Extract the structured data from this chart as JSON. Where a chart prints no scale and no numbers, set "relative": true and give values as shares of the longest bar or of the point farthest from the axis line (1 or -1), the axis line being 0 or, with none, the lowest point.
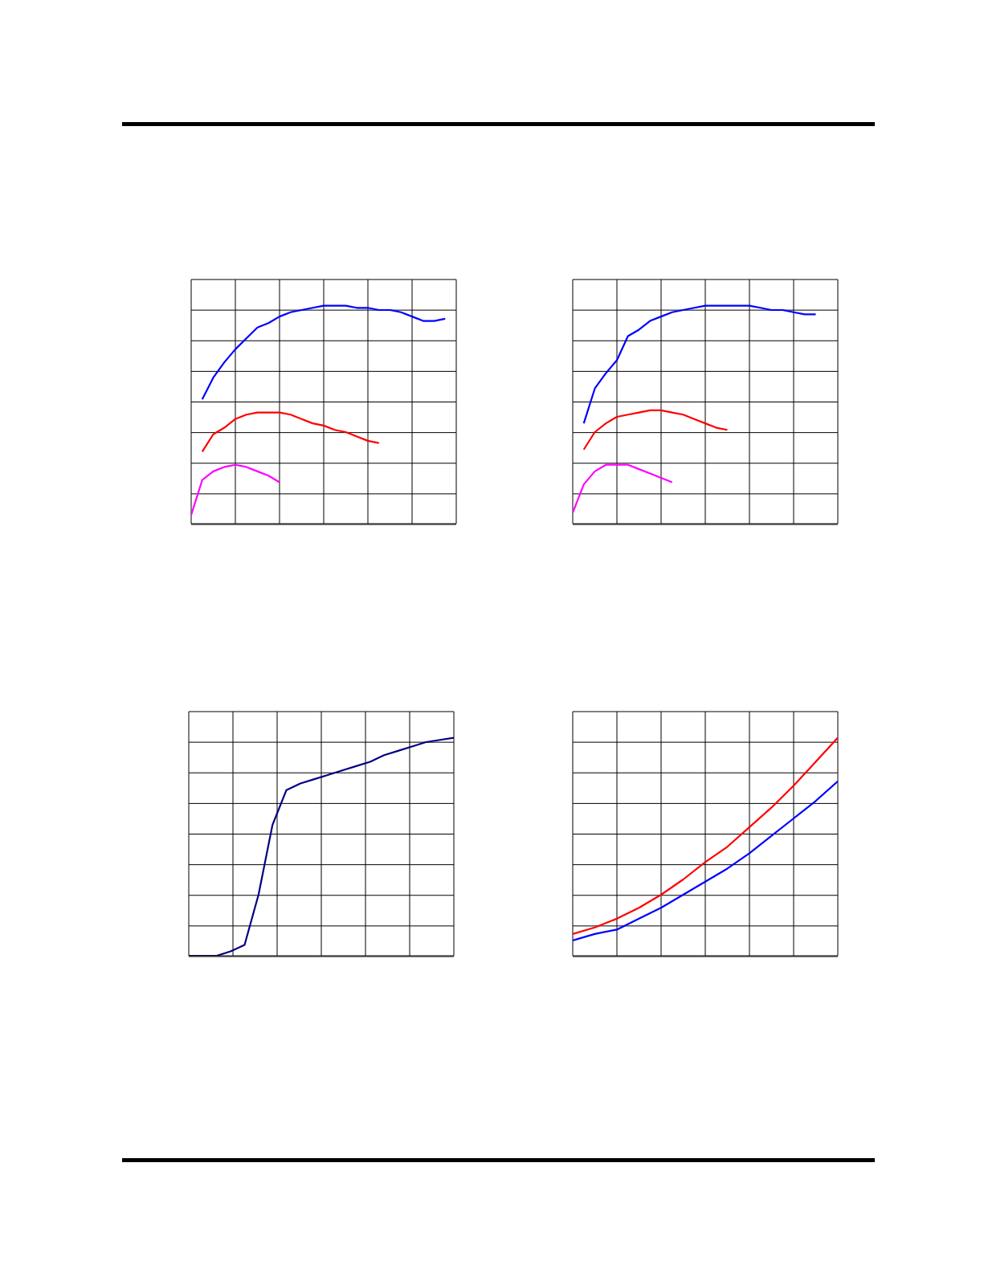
{
  "chart_data": [
    {
      "type": "line",
      "relative": true,
      "grid": true,
      "categories": [
        null,
        null,
        null,
        null,
        null,
        null,
        null,
        null,
        null,
        null,
        null,
        null,
        null,
        null,
        null,
        null,
        null,
        null,
        null,
        null,
        null,
        null,
        null,
        null,
        null
      ],
      "series": [
        {
          "color": "#0000ff",
          "values": [
            null,
            0.57,
            0.67,
            0.74,
            0.8,
            0.85,
            0.9,
            0.92,
            0.95,
            0.97,
            0.98,
            0.99,
            1,
            1,
            1,
            0.99,
            0.99,
            0.98,
            0.98,
            0.97,
            0.95,
            0.93,
            0.93,
            0.94,
            null
          ]
        },
        {
          "color": "#ff0000",
          "values": [
            null,
            0.33,
            0.41,
            0.44,
            0.48,
            0.5,
            0.51,
            0.51,
            0.51,
            0.5,
            0.48,
            0.46,
            0.45,
            0.43,
            0.42,
            0.4,
            0.38,
            0.37,
            null,
            null,
            null,
            null,
            null,
            null,
            null
          ]
        },
        {
          "color": "#ff00ff",
          "values": [
            0.04,
            0.2,
            0.24,
            0.26,
            0.27,
            0.26,
            0.24,
            0.22,
            0.19,
            null,
            null,
            null,
            null,
            null,
            null,
            null,
            null,
            null,
            null,
            null,
            null,
            null,
            null,
            null,
            null
          ]
        }
      ]
    },
    {
      "type": "line",
      "relative": true,
      "grid": true,
      "categories": [
        null,
        null,
        null,
        null,
        null,
        null,
        null,
        null,
        null,
        null,
        null,
        null,
        null,
        null,
        null,
        null,
        null,
        null,
        null,
        null,
        null,
        null,
        null,
        null,
        null
      ],
      "series": [
        {
          "color": "#0000ff",
          "values": [
            null,
            0.46,
            0.62,
            0.69,
            0.75,
            0.86,
            0.89,
            0.93,
            0.95,
            0.97,
            0.98,
            0.99,
            1,
            1,
            1,
            1,
            1,
            0.99,
            0.98,
            0.98,
            0.97,
            0.96,
            0.96,
            null,
            null
          ]
        },
        {
          "color": "#ff0000",
          "values": [
            null,
            0.34,
            0.42,
            0.46,
            0.49,
            0.5,
            0.51,
            0.52,
            0.52,
            0.51,
            0.5,
            0.48,
            0.46,
            0.44,
            0.43,
            null,
            null,
            null,
            null,
            null,
            null,
            null,
            null,
            null,
            null
          ]
        },
        {
          "color": "#ff00ff",
          "values": [
            0.05,
            0.18,
            0.24,
            0.27,
            0.27,
            0.27,
            0.25,
            0.23,
            0.21,
            0.19,
            null,
            null,
            null,
            null,
            null,
            null,
            null,
            null,
            null,
            null,
            null,
            null,
            null,
            null,
            null
          ]
        }
      ]
    },
    {
      "type": "line",
      "relative": true,
      "grid": true,
      "categories": [
        null,
        null,
        null,
        null,
        null,
        null,
        null,
        null,
        null,
        null,
        null,
        null,
        null,
        null,
        null,
        null,
        null,
        null,
        null,
        null
      ],
      "series": [
        {
          "color": "#000080",
          "values": [
            0,
            0,
            0,
            0.02,
            0.05,
            0.28,
            0.6,
            0.76,
            0.79,
            0.81,
            0.83,
            0.85,
            0.87,
            0.89,
            0.92,
            0.94,
            0.96,
            0.98,
            0.99,
            1
          ]
        }
      ]
    },
    {
      "type": "line",
      "relative": true,
      "grid": true,
      "categories": [
        null,
        null,
        null,
        null,
        null,
        null,
        null,
        null,
        null,
        null,
        null,
        null,
        null
      ],
      "series": [
        {
          "color": "#ff0000",
          "values": [
            0.1,
            0.13,
            0.17,
            0.22,
            0.28,
            0.35,
            0.43,
            0.5,
            0.59,
            0.68,
            0.78,
            0.89,
            1
          ]
        },
        {
          "color": "#0000ff",
          "values": [
            0.07,
            0.1,
            0.12,
            0.17,
            0.22,
            0.28,
            0.34,
            0.4,
            0.47,
            0.55,
            0.63,
            0.71,
            0.8
          ]
        }
      ]
    }
  ]
}
